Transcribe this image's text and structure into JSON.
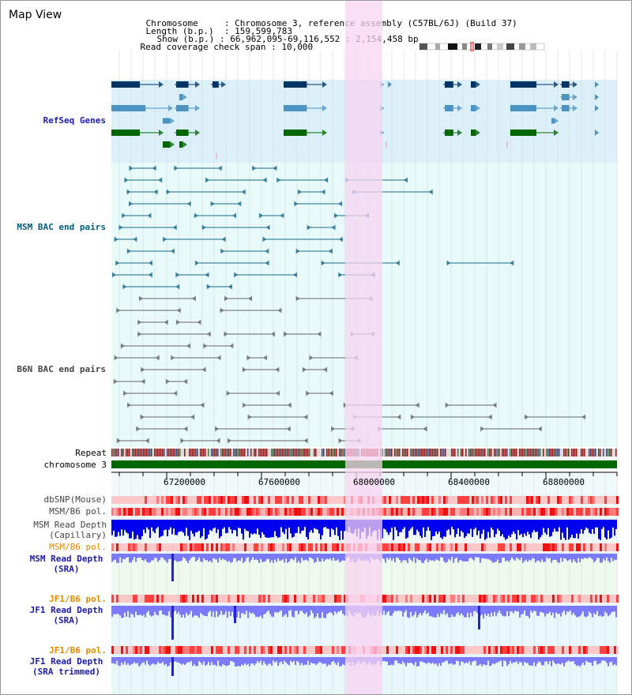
{
  "title": "Map View",
  "info": {
    "chromosome_label": "Chromosome",
    "chromosome_value": "Chromosome 3, reference assembly (C57BL/6J) (Build 37)",
    "length_label": "Length (b.p.)",
    "length_value": "159,599,783",
    "show_label": "Show (b.p.)",
    "show_value": "66,962,095-69,116,552 : 2,154,458 bp",
    "coverage_label": "Read coverage check span",
    "coverage_value": "10,000"
  },
  "tracks": {
    "refseq": "RefSeq Genes",
    "msm_bac": "MSM BAC end pairs",
    "b6n_bac": "B6N BAC end pairs",
    "repeat": "Repeat",
    "chromosome": "chromosome 3",
    "dbsnp": "dbSNP(Mouse)",
    "msm_b6_pol_1": "MSM/B6 pol.",
    "msm_read_depth_cap_1": "MSM Read Depth",
    "msm_read_depth_cap_2": "(Capillary)",
    "msm_b6_pol_2": "MSM/B6 pol.",
    "msm_read_depth_sra_1": "MSM Read Depth",
    "msm_read_depth_sra_2": "(SRA)",
    "jf1_b6_pol_1": "JF1/B6 pol.",
    "jf1_read_depth_sra_1": "JF1 Read Depth",
    "jf1_read_depth_sra_2": "(SRA)",
    "jf1_b6_pol_2": "JF1/B6 pol.",
    "jf1_read_depth_trim_1": "JF1 Read Depth",
    "jf1_read_depth_trim_2": "(SRA trimmed)"
  },
  "axis": {
    "ticks": [
      "67200000",
      "67600000",
      "68000000",
      "68400000",
      "68800000"
    ]
  },
  "colors": {
    "refseq_bg": "#dcf0fa",
    "bac_bg": "#e8fafa",
    "highlight": "#f8d4f2",
    "gene_dark": "#003366",
    "gene_mid": "#4b94c1",
    "gene_green": "#006600",
    "msm_bac": "#1a6a8a",
    "b6n_bac": "#666666",
    "msm_label": "#006080",
    "gray_label": "#444444",
    "orange_label": "#e08a00",
    "navy_label": "#1c1caa",
    "depth_blue": "#0000ee",
    "depth_light": "#7a7aff"
  }
}
